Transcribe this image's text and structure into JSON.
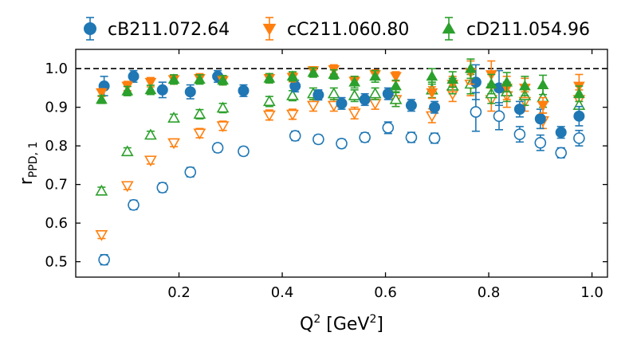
{
  "chart_data": {
    "type": "scatter",
    "xlabel": "Q² [GeV²]",
    "ylabel": "r_PPD,1",
    "xlim": [
      0.0,
      1.03
    ],
    "ylim": [
      0.46,
      1.05
    ],
    "xticks": [
      0.2,
      0.4,
      0.6,
      0.8,
      1.0
    ],
    "xtick_labels": [
      "0.2",
      "0.4",
      "0.6",
      "0.8",
      "1.0"
    ],
    "yticks": [
      0.5,
      0.6,
      0.7,
      0.8,
      0.9,
      1.0
    ],
    "ytick_labels": [
      "0.5",
      "0.6",
      "0.7",
      "0.8",
      "0.9",
      "1.0"
    ],
    "reference_line": 1.0,
    "legend_position": "top, outside",
    "series": [
      {
        "name": "cB211.072.64",
        "color": "#1f77b4",
        "marker": "circle",
        "filled": [
          {
            "x": 0.055,
            "y": 0.955,
            "e": 0.025
          },
          {
            "x": 0.112,
            "y": 0.98,
            "e": 0.015
          },
          {
            "x": 0.168,
            "y": 0.945,
            "e": 0.02
          },
          {
            "x": 0.222,
            "y": 0.94,
            "e": 0.018
          },
          {
            "x": 0.275,
            "y": 0.98,
            "e": 0.015
          },
          {
            "x": 0.325,
            "y": 0.943,
            "e": 0.015
          },
          {
            "x": 0.425,
            "y": 0.955,
            "e": 0.015
          },
          {
            "x": 0.47,
            "y": 0.932,
            "e": 0.013
          },
          {
            "x": 0.515,
            "y": 0.91,
            "e": 0.015
          },
          {
            "x": 0.56,
            "y": 0.92,
            "e": 0.015
          },
          {
            "x": 0.605,
            "y": 0.935,
            "e": 0.015
          },
          {
            "x": 0.65,
            "y": 0.905,
            "e": 0.015
          },
          {
            "x": 0.695,
            "y": 0.9,
            "e": 0.015
          },
          {
            "x": 0.775,
            "y": 0.965,
            "e": 0.045
          },
          {
            "x": 0.82,
            "y": 0.95,
            "e": 0.045
          },
          {
            "x": 0.86,
            "y": 0.895,
            "e": 0.02
          },
          {
            "x": 0.9,
            "y": 0.87,
            "e": 0.025
          },
          {
            "x": 0.94,
            "y": 0.835,
            "e": 0.015
          },
          {
            "x": 0.975,
            "y": 0.877,
            "e": 0.025
          }
        ],
        "open": [
          {
            "x": 0.055,
            "y": 0.505,
            "e": 0.013
          },
          {
            "x": 0.112,
            "y": 0.647,
            "e": 0.012
          },
          {
            "x": 0.168,
            "y": 0.692,
            "e": 0.012
          },
          {
            "x": 0.222,
            "y": 0.732,
            "e": 0.012
          },
          {
            "x": 0.275,
            "y": 0.795,
            "e": 0.011
          },
          {
            "x": 0.325,
            "y": 0.786,
            "e": 0.011
          },
          {
            "x": 0.425,
            "y": 0.826,
            "e": 0.012
          },
          {
            "x": 0.47,
            "y": 0.817,
            "e": 0.011
          },
          {
            "x": 0.515,
            "y": 0.806,
            "e": 0.011
          },
          {
            "x": 0.56,
            "y": 0.822,
            "e": 0.012
          },
          {
            "x": 0.605,
            "y": 0.847,
            "e": 0.015
          },
          {
            "x": 0.65,
            "y": 0.822,
            "e": 0.013
          },
          {
            "x": 0.695,
            "y": 0.82,
            "e": 0.013
          },
          {
            "x": 0.775,
            "y": 0.888,
            "e": 0.05
          },
          {
            "x": 0.82,
            "y": 0.877,
            "e": 0.035
          },
          {
            "x": 0.86,
            "y": 0.83,
            "e": 0.02
          },
          {
            "x": 0.9,
            "y": 0.808,
            "e": 0.02
          },
          {
            "x": 0.94,
            "y": 0.782,
            "e": 0.013
          },
          {
            "x": 0.975,
            "y": 0.82,
            "e": 0.02
          }
        ]
      },
      {
        "name": "cC211.060.80",
        "color": "#ff7f0e",
        "marker": "triangle-down",
        "filled": [
          {
            "x": 0.05,
            "y": 0.938,
            "e": 0.01
          },
          {
            "x": 0.1,
            "y": 0.955,
            "e": 0.012
          },
          {
            "x": 0.145,
            "y": 0.965,
            "e": 0.012
          },
          {
            "x": 0.19,
            "y": 0.972,
            "e": 0.012
          },
          {
            "x": 0.24,
            "y": 0.975,
            "e": 0.012
          },
          {
            "x": 0.285,
            "y": 0.97,
            "e": 0.012
          },
          {
            "x": 0.375,
            "y": 0.975,
            "e": 0.012
          },
          {
            "x": 0.42,
            "y": 0.978,
            "e": 0.012
          },
          {
            "x": 0.46,
            "y": 0.995,
            "e": 0.01
          },
          {
            "x": 0.5,
            "y": 0.998,
            "e": 0.012
          },
          {
            "x": 0.54,
            "y": 0.968,
            "e": 0.012
          },
          {
            "x": 0.58,
            "y": 0.985,
            "e": 0.012
          },
          {
            "x": 0.62,
            "y": 0.98,
            "e": 0.012
          },
          {
            "x": 0.69,
            "y": 0.938,
            "e": 0.015
          },
          {
            "x": 0.73,
            "y": 0.96,
            "e": 0.02
          },
          {
            "x": 0.765,
            "y": 0.99,
            "e": 0.03
          },
          {
            "x": 0.805,
            "y": 0.985,
            "e": 0.035
          },
          {
            "x": 0.835,
            "y": 0.95,
            "e": 0.03
          },
          {
            "x": 0.87,
            "y": 0.95,
            "e": 0.025
          },
          {
            "x": 0.905,
            "y": 0.905,
            "e": 0.02
          },
          {
            "x": 0.975,
            "y": 0.955,
            "e": 0.03
          }
        ],
        "open": [
          {
            "x": 0.05,
            "y": 0.57,
            "e": 0.01
          },
          {
            "x": 0.1,
            "y": 0.697,
            "e": 0.01
          },
          {
            "x": 0.145,
            "y": 0.763,
            "e": 0.01
          },
          {
            "x": 0.19,
            "y": 0.808,
            "e": 0.01
          },
          {
            "x": 0.24,
            "y": 0.833,
            "e": 0.012
          },
          {
            "x": 0.285,
            "y": 0.852,
            "e": 0.012
          },
          {
            "x": 0.375,
            "y": 0.88,
            "e": 0.013
          },
          {
            "x": 0.42,
            "y": 0.882,
            "e": 0.013
          },
          {
            "x": 0.46,
            "y": 0.905,
            "e": 0.015
          },
          {
            "x": 0.5,
            "y": 0.905,
            "e": 0.015
          },
          {
            "x": 0.54,
            "y": 0.885,
            "e": 0.015
          },
          {
            "x": 0.58,
            "y": 0.91,
            "e": 0.015
          },
          {
            "x": 0.62,
            "y": 0.92,
            "e": 0.018
          },
          {
            "x": 0.69,
            "y": 0.878,
            "e": 0.018
          },
          {
            "x": 0.73,
            "y": 0.935,
            "e": 0.02
          },
          {
            "x": 0.765,
            "y": 0.96,
            "e": 0.03
          },
          {
            "x": 0.805,
            "y": 0.92,
            "e": 0.03
          },
          {
            "x": 0.835,
            "y": 0.93,
            "e": 0.03
          },
          {
            "x": 0.87,
            "y": 0.915,
            "e": 0.025
          },
          {
            "x": 0.905,
            "y": 0.865,
            "e": 0.02
          },
          {
            "x": 0.975,
            "y": 0.92,
            "e": 0.025
          }
        ]
      },
      {
        "name": "cD211.054.96",
        "color": "#2ca02c",
        "marker": "triangle-up",
        "filled": [
          {
            "x": 0.05,
            "y": 0.92,
            "e": 0.01
          },
          {
            "x": 0.1,
            "y": 0.942,
            "e": 0.012
          },
          {
            "x": 0.145,
            "y": 0.945,
            "e": 0.012
          },
          {
            "x": 0.19,
            "y": 0.972,
            "e": 0.012
          },
          {
            "x": 0.24,
            "y": 0.972,
            "e": 0.012
          },
          {
            "x": 0.285,
            "y": 0.97,
            "e": 0.012
          },
          {
            "x": 0.375,
            "y": 0.975,
            "e": 0.012
          },
          {
            "x": 0.42,
            "y": 0.98,
            "e": 0.012
          },
          {
            "x": 0.46,
            "y": 0.99,
            "e": 0.012
          },
          {
            "x": 0.5,
            "y": 0.985,
            "e": 0.012
          },
          {
            "x": 0.54,
            "y": 0.965,
            "e": 0.015
          },
          {
            "x": 0.58,
            "y": 0.98,
            "e": 0.015
          },
          {
            "x": 0.62,
            "y": 0.955,
            "e": 0.015
          },
          {
            "x": 0.69,
            "y": 0.98,
            "e": 0.02
          },
          {
            "x": 0.73,
            "y": 0.972,
            "e": 0.02
          },
          {
            "x": 0.765,
            "y": 1.0,
            "e": 0.025
          },
          {
            "x": 0.805,
            "y": 0.96,
            "e": 0.025
          },
          {
            "x": 0.835,
            "y": 0.965,
            "e": 0.025
          },
          {
            "x": 0.87,
            "y": 0.955,
            "e": 0.025
          },
          {
            "x": 0.905,
            "y": 0.958,
            "e": 0.025
          },
          {
            "x": 0.975,
            "y": 0.935,
            "e": 0.02
          }
        ],
        "open": [
          {
            "x": 0.05,
            "y": 0.683,
            "e": 0.01
          },
          {
            "x": 0.1,
            "y": 0.785,
            "e": 0.01
          },
          {
            "x": 0.145,
            "y": 0.828,
            "e": 0.01
          },
          {
            "x": 0.19,
            "y": 0.872,
            "e": 0.01
          },
          {
            "x": 0.24,
            "y": 0.882,
            "e": 0.012
          },
          {
            "x": 0.285,
            "y": 0.898,
            "e": 0.012
          },
          {
            "x": 0.375,
            "y": 0.915,
            "e": 0.013
          },
          {
            "x": 0.42,
            "y": 0.93,
            "e": 0.013
          },
          {
            "x": 0.46,
            "y": 0.935,
            "e": 0.015
          },
          {
            "x": 0.5,
            "y": 0.935,
            "e": 0.015
          },
          {
            "x": 0.54,
            "y": 0.93,
            "e": 0.015
          },
          {
            "x": 0.58,
            "y": 0.935,
            "e": 0.015
          },
          {
            "x": 0.62,
            "y": 0.92,
            "e": 0.018
          },
          {
            "x": 0.69,
            "y": 0.945,
            "e": 0.02
          },
          {
            "x": 0.73,
            "y": 0.955,
            "e": 0.02
          },
          {
            "x": 0.765,
            "y": 0.96,
            "e": 0.025
          },
          {
            "x": 0.805,
            "y": 0.935,
            "e": 0.025
          },
          {
            "x": 0.835,
            "y": 0.94,
            "e": 0.025
          },
          {
            "x": 0.87,
            "y": 0.93,
            "e": 0.025
          },
          {
            "x": 0.905,
            "y": 0.925,
            "e": 0.025
          },
          {
            "x": 0.975,
            "y": 0.905,
            "e": 0.02
          }
        ]
      }
    ]
  }
}
